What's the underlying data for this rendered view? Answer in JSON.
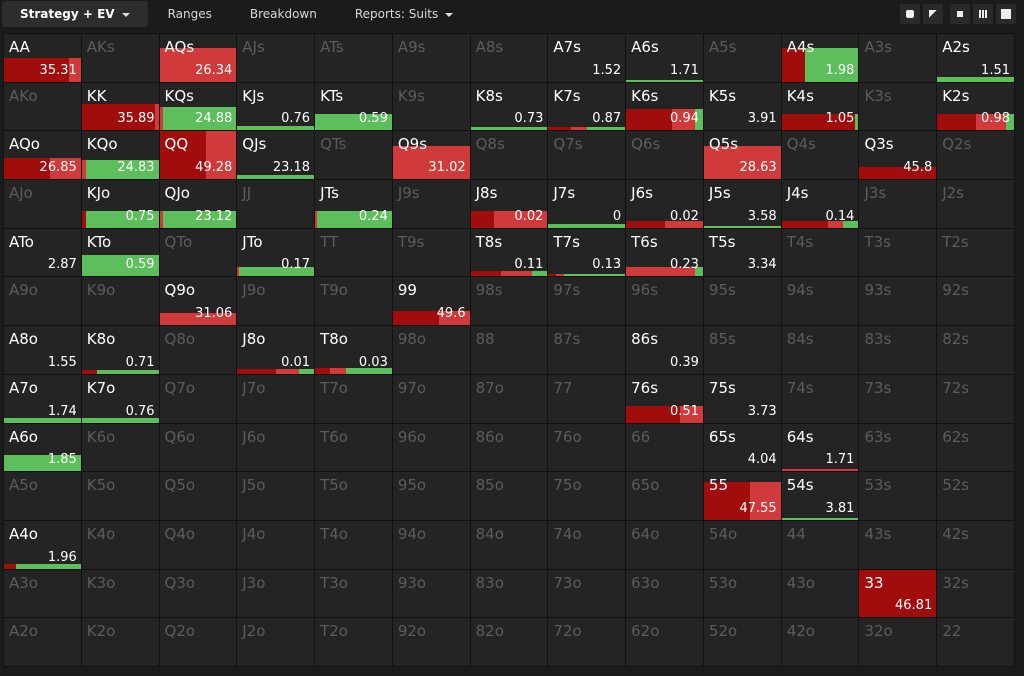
{
  "tabs": [
    {
      "label": "Strategy + EV",
      "dropdown": true,
      "active": true
    },
    {
      "label": "Ranges"
    },
    {
      "label": "Breakdown"
    },
    {
      "label": "Reports: Suits",
      "dropdown": true
    }
  ],
  "palette": {
    "d": "#a10d0d",
    "r": "#d13a3a",
    "g": "#5dbf5c"
  },
  "grid": [
    [
      {
        "hand": "AA",
        "ev": 35.31,
        "weight": 0.5,
        "mix": [
          [
            "d",
            0.85
          ],
          [
            "r",
            0.15
          ]
        ]
      },
      {
        "hand": "AKs"
      },
      {
        "hand": "AQs",
        "ev": 26.34,
        "weight": 0.7,
        "mix": [
          [
            "r",
            1
          ]
        ]
      },
      {
        "hand": "AJs"
      },
      {
        "hand": "ATs"
      },
      {
        "hand": "A9s"
      },
      {
        "hand": "A8s"
      },
      {
        "hand": "A7s",
        "ev": 1.52
      },
      {
        "hand": "A6s",
        "ev": 1.71,
        "weight": 0.04,
        "mix": [
          [
            "g",
            1
          ]
        ]
      },
      {
        "hand": "A5s"
      },
      {
        "hand": "A4s",
        "ev": 1.98,
        "weight": 0.7,
        "mix": [
          [
            "d",
            0.3
          ],
          [
            "g",
            0.7
          ]
        ]
      },
      {
        "hand": "A3s"
      },
      {
        "hand": "A2s",
        "ev": 1.51,
        "weight": 0.1,
        "mix": [
          [
            "g",
            1
          ]
        ]
      }
    ],
    [
      {
        "hand": "AKo"
      },
      {
        "hand": "KK",
        "ev": 35.89,
        "weight": 0.55,
        "mix": [
          [
            "d",
            0.95
          ],
          [
            "r",
            0.05
          ]
        ]
      },
      {
        "hand": "KQs",
        "ev": 24.88,
        "weight": 0.5,
        "mix": [
          [
            "r",
            0.05
          ],
          [
            "g",
            0.95
          ]
        ]
      },
      {
        "hand": "KJs",
        "ev": 0.76,
        "weight": 0.1,
        "mix": [
          [
            "g",
            1
          ]
        ]
      },
      {
        "hand": "KTs",
        "ev": 0.59,
        "weight": 0.35,
        "mix": [
          [
            "g",
            1
          ]
        ]
      },
      {
        "hand": "K9s"
      },
      {
        "hand": "K8s",
        "ev": 0.73,
        "weight": 0.08,
        "mix": [
          [
            "g",
            1
          ]
        ]
      },
      {
        "hand": "K7s",
        "ev": 0.87,
        "weight": 0.08,
        "mix": [
          [
            "d",
            0.3
          ],
          [
            "r",
            0.2
          ],
          [
            "g",
            0.5
          ]
        ]
      },
      {
        "hand": "K6s",
        "ev": 0.94,
        "weight": 0.45,
        "mix": [
          [
            "d",
            0.6
          ],
          [
            "r",
            0.3
          ],
          [
            "g",
            0.1
          ]
        ]
      },
      {
        "hand": "K5s",
        "ev": 3.91
      },
      {
        "hand": "K4s",
        "ev": 1.05,
        "weight": 0.35,
        "mix": [
          [
            "d",
            0.95
          ],
          [
            "g",
            0.05
          ]
        ]
      },
      {
        "hand": "K3s"
      },
      {
        "hand": "K2s",
        "ev": 0.98,
        "weight": 0.35,
        "mix": [
          [
            "d",
            0.5
          ],
          [
            "r",
            0.4
          ],
          [
            "g",
            0.1
          ]
        ]
      }
    ],
    [
      {
        "hand": "AQo",
        "ev": 26.85,
        "weight": 0.45,
        "mix": [
          [
            "d",
            0.6
          ],
          [
            "r",
            0.4
          ]
        ]
      },
      {
        "hand": "KQo",
        "ev": 24.83,
        "weight": 0.4,
        "mix": [
          [
            "r",
            0.05
          ],
          [
            "g",
            0.95
          ]
        ]
      },
      {
        "hand": "QQ",
        "ev": 49.28,
        "weight": 1,
        "mix": [
          [
            "d",
            0.6
          ],
          [
            "r",
            0.4
          ]
        ]
      },
      {
        "hand": "QJs",
        "ev": 23.18,
        "weight": 0.08,
        "mix": [
          [
            "g",
            1
          ]
        ]
      },
      {
        "hand": "QTs"
      },
      {
        "hand": "Q9s",
        "ev": 31.02,
        "weight": 0.7,
        "mix": [
          [
            "r",
            1
          ]
        ]
      },
      {
        "hand": "Q8s"
      },
      {
        "hand": "Q7s"
      },
      {
        "hand": "Q6s"
      },
      {
        "hand": "Q5s",
        "ev": 28.63,
        "weight": 0.7,
        "mix": [
          [
            "r",
            1
          ]
        ]
      },
      {
        "hand": "Q4s"
      },
      {
        "hand": "Q3s",
        "ev": 45.8,
        "weight": 0.25,
        "mix": [
          [
            "d",
            1
          ]
        ]
      },
      {
        "hand": "Q2s"
      }
    ],
    [
      {
        "hand": "AJo"
      },
      {
        "hand": "KJo",
        "ev": 0.75,
        "weight": 0.35,
        "mix": [
          [
            "d",
            0.05
          ],
          [
            "g",
            0.95
          ]
        ]
      },
      {
        "hand": "QJo",
        "ev": 23.12,
        "weight": 0.35,
        "mix": [
          [
            "r",
            0.05
          ],
          [
            "g",
            0.95
          ]
        ]
      },
      {
        "hand": "JJ"
      },
      {
        "hand": "JTs",
        "ev": 0.24,
        "weight": 0.35,
        "mix": [
          [
            "r",
            0.03
          ],
          [
            "g",
            0.97
          ]
        ]
      },
      {
        "hand": "J9s"
      },
      {
        "hand": "J8s",
        "ev": 0.02,
        "weight": 0.35,
        "mix": [
          [
            "d",
            0.3
          ],
          [
            "r",
            0.7
          ]
        ]
      },
      {
        "hand": "J7s",
        "ev": 0,
        "weight": 0.08,
        "mix": [
          [
            "g",
            1
          ]
        ]
      },
      {
        "hand": "J6s",
        "ev": 0.02,
        "weight": 0.15,
        "mix": [
          [
            "d",
            0.5
          ],
          [
            "r",
            0.5
          ]
        ]
      },
      {
        "hand": "J5s",
        "ev": 3.58,
        "weight": 0.04,
        "mix": [
          [
            "g",
            1
          ]
        ]
      },
      {
        "hand": "J4s",
        "ev": 0.14,
        "weight": 0.15,
        "mix": [
          [
            "d",
            0.6
          ],
          [
            "r",
            0.2
          ],
          [
            "g",
            0.2
          ]
        ]
      },
      {
        "hand": "J3s"
      },
      {
        "hand": "J2s"
      }
    ],
    [
      {
        "hand": "ATo",
        "ev": 2.87
      },
      {
        "hand": "KTo",
        "ev": 0.59,
        "weight": 0.45,
        "mix": [
          [
            "g",
            1
          ]
        ]
      },
      {
        "hand": "QTo"
      },
      {
        "hand": "JTo",
        "ev": 0.17,
        "weight": 0.2,
        "mix": [
          [
            "r",
            0.02
          ],
          [
            "g",
            0.98
          ]
        ]
      },
      {
        "hand": "TT"
      },
      {
        "hand": "T9s"
      },
      {
        "hand": "T8s",
        "ev": 0.11,
        "weight": 0.12,
        "mix": [
          [
            "d",
            0.4
          ],
          [
            "r",
            0.4
          ],
          [
            "g",
            0.2
          ]
        ]
      },
      {
        "hand": "T7s",
        "ev": 0.13,
        "weight": 0.06,
        "mix": [
          [
            "d",
            0.1
          ],
          [
            "r",
            0.1
          ],
          [
            "g",
            0.8
          ]
        ]
      },
      {
        "hand": "T6s",
        "ev": 0.23,
        "weight": 0.2,
        "mix": [
          [
            "r",
            0.9
          ],
          [
            "g",
            0.1
          ]
        ]
      },
      {
        "hand": "T5s",
        "ev": 3.34
      },
      {
        "hand": "T4s"
      },
      {
        "hand": "T3s"
      },
      {
        "hand": "T2s"
      }
    ],
    [
      {
        "hand": "A9o"
      },
      {
        "hand": "K9o"
      },
      {
        "hand": "Q9o",
        "ev": 31.06,
        "weight": 0.25,
        "mix": [
          [
            "r",
            1
          ]
        ]
      },
      {
        "hand": "J9o"
      },
      {
        "hand": "T9o"
      },
      {
        "hand": "99",
        "ev": 49.6,
        "weight": 0.3,
        "mix": [
          [
            "d",
            0.6
          ],
          [
            "r",
            0.4
          ]
        ]
      },
      {
        "hand": "98s"
      },
      {
        "hand": "97s"
      },
      {
        "hand": "96s"
      },
      {
        "hand": "95s"
      },
      {
        "hand": "94s"
      },
      {
        "hand": "93s"
      },
      {
        "hand": "92s"
      }
    ],
    [
      {
        "hand": "A8o",
        "ev": 1.55
      },
      {
        "hand": "K8o",
        "ev": 0.71,
        "weight": 0.08,
        "mix": [
          [
            "d",
            0.2
          ],
          [
            "g",
            0.8
          ]
        ]
      },
      {
        "hand": "Q8o"
      },
      {
        "hand": "J8o",
        "ev": 0.01,
        "weight": 0.1,
        "mix": [
          [
            "d",
            0.5
          ],
          [
            "r",
            0.3
          ],
          [
            "g",
            0.2
          ]
        ]
      },
      {
        "hand": "T8o",
        "ev": 0.03,
        "weight": 0.12,
        "mix": [
          [
            "d",
            0.2
          ],
          [
            "r",
            0.2
          ],
          [
            "g",
            0.6
          ]
        ]
      },
      {
        "hand": "98o"
      },
      {
        "hand": "88"
      },
      {
        "hand": "87s"
      },
      {
        "hand": "86s",
        "ev": 0.39
      },
      {
        "hand": "85s"
      },
      {
        "hand": "84s"
      },
      {
        "hand": "83s"
      },
      {
        "hand": "82s"
      }
    ],
    [
      {
        "hand": "A7o",
        "ev": 1.74,
        "weight": 0.1,
        "mix": [
          [
            "g",
            1
          ]
        ]
      },
      {
        "hand": "K7o",
        "ev": 0.76,
        "weight": 0.1,
        "mix": [
          [
            "g",
            1
          ]
        ]
      },
      {
        "hand": "Q7o"
      },
      {
        "hand": "J7o"
      },
      {
        "hand": "T7o"
      },
      {
        "hand": "97o"
      },
      {
        "hand": "87o"
      },
      {
        "hand": "77"
      },
      {
        "hand": "76s",
        "ev": 0.51,
        "weight": 0.35,
        "mix": [
          [
            "d",
            0.7
          ],
          [
            "r",
            0.3
          ]
        ]
      },
      {
        "hand": "75s",
        "ev": 3.73
      },
      {
        "hand": "74s"
      },
      {
        "hand": "73s"
      },
      {
        "hand": "72s"
      }
    ],
    [
      {
        "hand": "A6o",
        "ev": 1.85,
        "weight": 0.35,
        "mix": [
          [
            "g",
            1
          ]
        ]
      },
      {
        "hand": "K6o"
      },
      {
        "hand": "Q6o"
      },
      {
        "hand": "J6o"
      },
      {
        "hand": "T6o"
      },
      {
        "hand": "96o"
      },
      {
        "hand": "86o"
      },
      {
        "hand": "76o"
      },
      {
        "hand": "66"
      },
      {
        "hand": "65s",
        "ev": 4.04
      },
      {
        "hand": "64s",
        "ev": 1.71,
        "weight": 0.04,
        "mix": [
          [
            "r",
            1
          ]
        ]
      },
      {
        "hand": "63s"
      },
      {
        "hand": "62s"
      }
    ],
    [
      {
        "hand": "A5o"
      },
      {
        "hand": "K5o"
      },
      {
        "hand": "Q5o"
      },
      {
        "hand": "J5o"
      },
      {
        "hand": "T5o"
      },
      {
        "hand": "95o"
      },
      {
        "hand": "85o"
      },
      {
        "hand": "75o"
      },
      {
        "hand": "65o"
      },
      {
        "hand": "55",
        "ev": 47.55,
        "weight": 0.8,
        "mix": [
          [
            "d",
            0.6
          ],
          [
            "r",
            0.4
          ]
        ]
      },
      {
        "hand": "54s",
        "ev": 3.81,
        "weight": 0.04,
        "mix": [
          [
            "g",
            1
          ]
        ]
      },
      {
        "hand": "53s"
      },
      {
        "hand": "52s"
      }
    ],
    [
      {
        "hand": "A4o",
        "ev": 1.96,
        "weight": 0.1,
        "mix": [
          [
            "d",
            0.15
          ],
          [
            "g",
            0.85
          ]
        ]
      },
      {
        "hand": "K4o"
      },
      {
        "hand": "Q4o"
      },
      {
        "hand": "J4o"
      },
      {
        "hand": "T4o"
      },
      {
        "hand": "94o"
      },
      {
        "hand": "84o"
      },
      {
        "hand": "74o"
      },
      {
        "hand": "64o"
      },
      {
        "hand": "54o"
      },
      {
        "hand": "44"
      },
      {
        "hand": "43s"
      },
      {
        "hand": "42s"
      }
    ],
    [
      {
        "hand": "A3o"
      },
      {
        "hand": "K3o"
      },
      {
        "hand": "Q3o"
      },
      {
        "hand": "J3o"
      },
      {
        "hand": "T3o"
      },
      {
        "hand": "93o"
      },
      {
        "hand": "83o"
      },
      {
        "hand": "73o"
      },
      {
        "hand": "63o"
      },
      {
        "hand": "53o"
      },
      {
        "hand": "43o"
      },
      {
        "hand": "33",
        "ev": 46.81,
        "weight": 1,
        "mix": [
          [
            "d",
            1
          ]
        ]
      },
      {
        "hand": "32s"
      }
    ],
    [
      {
        "hand": "A2o"
      },
      {
        "hand": "K2o"
      },
      {
        "hand": "Q2o"
      },
      {
        "hand": "J2o"
      },
      {
        "hand": "T2o"
      },
      {
        "hand": "92o"
      },
      {
        "hand": "82o"
      },
      {
        "hand": "72o"
      },
      {
        "hand": "62o"
      },
      {
        "hand": "52o"
      },
      {
        "hand": "42o"
      },
      {
        "hand": "32o"
      },
      {
        "hand": "22"
      }
    ]
  ]
}
